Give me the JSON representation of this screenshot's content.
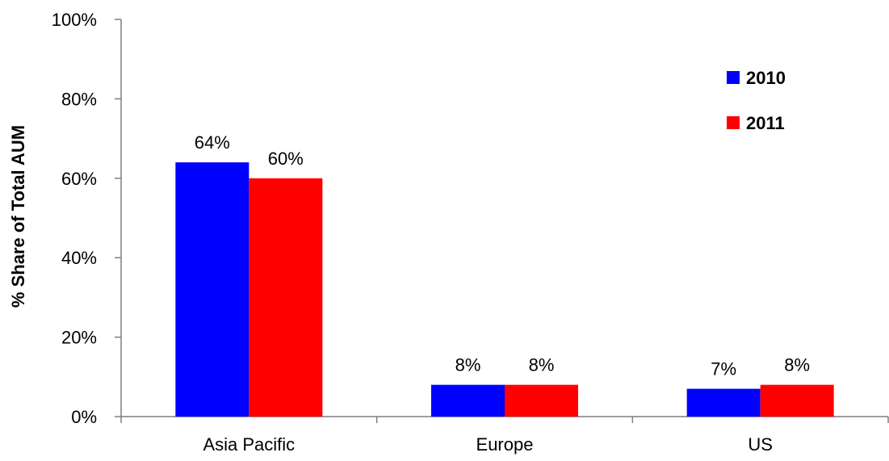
{
  "chart_data": {
    "type": "bar",
    "categories": [
      "Asia Pacific",
      "Europe",
      "US"
    ],
    "series": [
      {
        "name": "2010",
        "values": [
          64,
          8,
          7
        ],
        "labels": [
          "64%",
          "8%",
          "7%"
        ],
        "color": "#0000ff"
      },
      {
        "name": "2011",
        "values": [
          60,
          8,
          8
        ],
        "labels": [
          "60%",
          "8%",
          "8%"
        ],
        "color": "#ff0000"
      }
    ],
    "ylabel": "% Share of Total AUM",
    "xlabel": "",
    "ylim": [
      0,
      100
    ],
    "yticks": [
      "0%",
      "20%",
      "40%",
      "60%",
      "80%",
      "100%"
    ],
    "ytick_values": [
      0,
      20,
      40,
      60,
      80,
      100
    ],
    "legend_position": "top-right",
    "grid": false
  }
}
